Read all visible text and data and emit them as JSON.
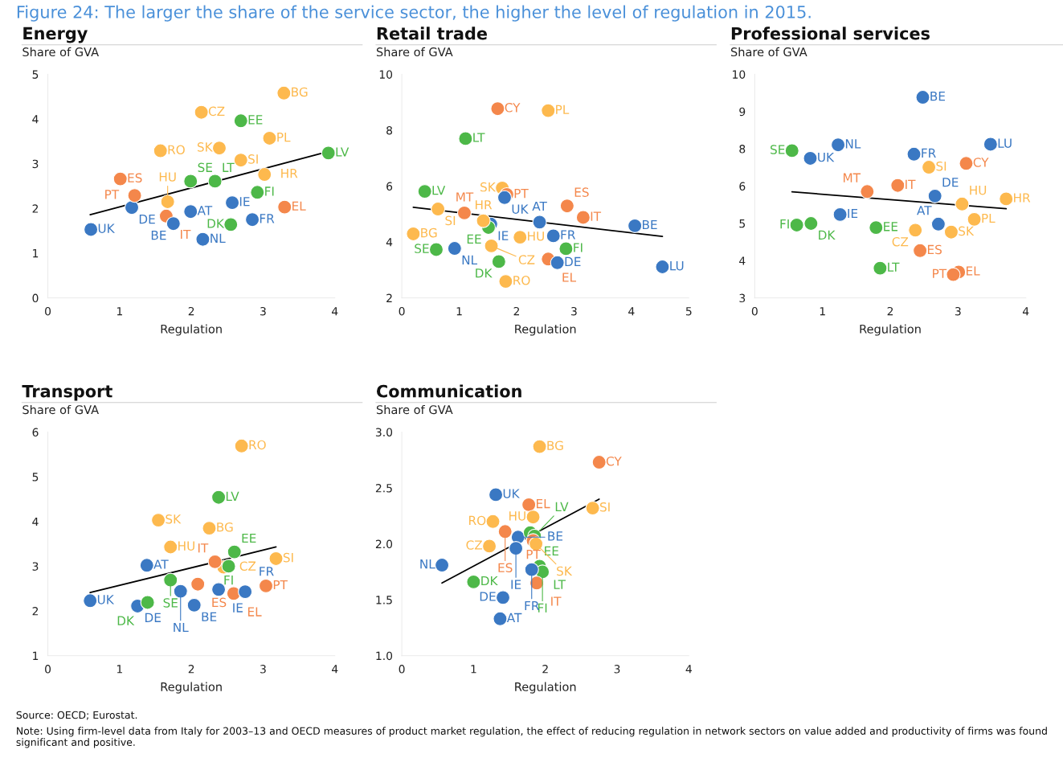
{
  "chart_data": [
    {
      "type": "scatter",
      "title": "Energy",
      "ylabel": "Share of GVA",
      "xlabel": "Regulation",
      "xlim": [
        0,
        4
      ],
      "xticks": [
        0,
        1,
        2,
        3,
        4
      ],
      "ylim": [
        0,
        5
      ],
      "yticks": [
        0,
        1,
        2,
        3,
        4,
        5
      ],
      "annotations": [
        "Figure 24: The larger the share of the service sector, the higher the level of regulation in 2015."
      ],
      "series": [
        {
          "marker": "circle",
          "x": [
            0.6,
            1.17,
            1.01,
            1.21,
            1.65,
            1.75,
            1.67,
            1.57,
            1.99,
            1.99,
            2.14,
            2.16,
            2.33,
            2.39,
            2.57,
            2.55,
            2.69,
            2.69,
            2.85,
            2.92,
            3.02,
            3.09,
            3.29,
            3.3,
            3.91
          ],
          "values": [
            1.53,
            2.02,
            2.66,
            2.29,
            1.83,
            1.66,
            2.15,
            3.29,
            2.61,
            1.93,
            4.15,
            1.31,
            2.61,
            3.35,
            2.13,
            1.64,
            3.96,
            3.08,
            1.75,
            2.36,
            2.76,
            3.57,
            4.58,
            2.03,
            3.24
          ],
          "value_labels": [
            "UK",
            "DE",
            "ES",
            "PT",
            "IT",
            "BE",
            "HU",
            "RO",
            "SE",
            "AT",
            "CZ",
            "NL",
            "LT",
            "SK",
            "IE",
            "DK",
            "EE",
            "SI",
            "FR",
            "FI",
            "HR",
            "PL",
            "BG",
            "EL",
            "LV"
          ],
          "colors": [
            "#3a78c3",
            "#3a78c3",
            "#f4874b",
            "#f4874b",
            "#f4874b",
            "#3a78c3",
            "#fdb94e",
            "#fdb94e",
            "#4db848",
            "#3a78c3",
            "#fdb94e",
            "#3a78c3",
            "#4db848",
            "#fdb94e",
            "#3a78c3",
            "#4db848",
            "#4db848",
            "#fdb94e",
            "#3a78c3",
            "#4db848",
            "#fdb94e",
            "#fdb94e",
            "#fdb94e",
            "#f4874b",
            "#4db848"
          ]
        },
        {
          "type": "line",
          "x": [
            0.59,
            3.81
          ],
          "values": [
            1.86,
            3.23
          ],
          "color": "#000000"
        }
      ]
    },
    {
      "type": "scatter",
      "title": "Retail trade",
      "ylabel": "Share of GVA",
      "xlabel": "Regulation",
      "xlim": [
        0,
        5
      ],
      "xticks": [
        0,
        1,
        2,
        3,
        4,
        5
      ],
      "ylim": [
        2,
        10
      ],
      "yticks": [
        2,
        4,
        6,
        8,
        10
      ],
      "series": [
        {
          "marker": "circle",
          "x": [
            1.67,
            2.55,
            1.11,
            0.4,
            1.75,
            1.83,
            1.79,
            0.63,
            1.09,
            1.55,
            1.51,
            1.42,
            2.4,
            2.88,
            3.16,
            4.06,
            0.2,
            2.06,
            2.64,
            0.6,
            0.92,
            1.56,
            2.86,
            1.69,
            2.55,
            2.71,
            4.54,
            1.81
          ],
          "values": [
            8.77,
            8.7,
            7.7,
            5.81,
            5.93,
            5.7,
            5.59,
            5.18,
            5.04,
            4.64,
            4.52,
            4.76,
            4.71,
            5.29,
            4.88,
            4.58,
            4.29,
            4.17,
            4.22,
            3.73,
            3.77,
            3.86,
            3.76,
            3.3,
            3.39,
            3.26,
            3.11,
            2.59
          ],
          "value_labels": [
            "CY",
            "PL",
            "LT",
            "LV",
            "SK",
            "PT",
            "UK",
            "SI",
            "MT",
            "IE",
            "EE",
            "HR",
            "AT",
            "ES",
            "IT",
            "BE",
            "BG",
            "HU",
            "FR",
            "SE",
            "NL",
            "CZ",
            "FI",
            "DK",
            "EL",
            "DE",
            "LU",
            "RO"
          ],
          "colors": [
            "#f4874b",
            "#fdb94e",
            "#4db848",
            "#4db848",
            "#fdb94e",
            "#f4874b",
            "#3a78c3",
            "#fdb94e",
            "#f4874b",
            "#3a78c3",
            "#4db848",
            "#fdb94e",
            "#3a78c3",
            "#f4874b",
            "#f4874b",
            "#3a78c3",
            "#fdb94e",
            "#fdb94e",
            "#3a78c3",
            "#4db848",
            "#3a78c3",
            "#fdb94e",
            "#4db848",
            "#4db848",
            "#f4874b",
            "#3a78c3",
            "#3a78c3",
            "#fdb94e"
          ]
        },
        {
          "type": "line",
          "x": [
            0.2,
            4.54
          ],
          "values": [
            5.24,
            4.2
          ],
          "color": "#000000"
        }
      ]
    },
    {
      "type": "scatter",
      "title": "Professional services",
      "ylabel": "Share of GVA",
      "xlabel": "Regulation",
      "xlim": [
        0,
        4
      ],
      "xticks": [
        0,
        1,
        2,
        3,
        4
      ],
      "ylim": [
        3,
        10
      ],
      "yticks": [
        3,
        {
          "value": 4.1667,
          "label": "4"
        },
        {
          "value": 5.3333,
          "label": "5"
        },
        {
          "value": 6.5,
          "label": "6"
        },
        {
          "value": 7.6667,
          "label": "8"
        },
        {
          "value": 8.8333,
          "label": "9"
        },
        10
      ],
      "series": [
        {
          "marker": "circle",
          "x": [
            2.48,
            1.23,
            0.55,
            0.82,
            2.35,
            3.48,
            3.12,
            2.57,
            1.66,
            2.11,
            2.66,
            3.06,
            3.71,
            1.26,
            0.62,
            0.83,
            1.79,
            2.37,
            2.71,
            3.24,
            2.9,
            2.44,
            1.85,
            3.01,
            2.93
          ],
          "values": [
            9.28,
            7.79,
            7.61,
            7.37,
            7.5,
            7.81,
            7.21,
            7.09,
            6.33,
            6.52,
            6.19,
            5.94,
            6.1,
            5.61,
            5.28,
            5.33,
            5.2,
            5.12,
            5.31,
            5.46,
            5.06,
            4.48,
            3.93,
            3.81,
            3.73
          ],
          "value_labels": [
            "BE",
            "NL",
            "SE",
            "UK",
            "FR",
            "LU",
            "CY",
            "SI",
            "MT",
            "IT",
            "DE",
            "HU",
            "HR",
            "IE",
            "FI",
            "DK",
            "EE",
            "CZ",
            "AT",
            "PL",
            "SK",
            "ES",
            "LT",
            "EL",
            "PT"
          ],
          "colors": [
            "#3a78c3",
            "#3a78c3",
            "#4db848",
            "#3a78c3",
            "#3a78c3",
            "#3a78c3",
            "#f4874b",
            "#fdb94e",
            "#f4874b",
            "#f4874b",
            "#3a78c3",
            "#fdb94e",
            "#fdb94e",
            "#3a78c3",
            "#4db848",
            "#4db848",
            "#4db848",
            "#fdb94e",
            "#3a78c3",
            "#fdb94e",
            "#fdb94e",
            "#f4874b",
            "#4db848",
            "#f4874b",
            "#f4874b"
          ]
        },
        {
          "type": "line",
          "x": [
            0.55,
            3.71
          ],
          "values": [
            6.32,
            5.79
          ],
          "color": "#000000"
        }
      ]
    },
    {
      "type": "scatter",
      "title": "Transport",
      "ylabel": "Share of GVA",
      "xlabel": "Regulation",
      "xlim": [
        0,
        4
      ],
      "xticks": [
        0,
        1,
        2,
        3,
        4
      ],
      "ylim": [
        1,
        6
      ],
      "yticks": [
        1,
        2,
        3,
        4,
        5,
        6
      ],
      "series": [
        {
          "marker": "circle",
          "x": [
            2.7,
            2.38,
            1.54,
            2.25,
            1.71,
            2.45,
            2.6,
            2.33,
            2.52,
            3.18,
            1.38,
            1.71,
            2.09,
            3.04,
            0.59,
            1.25,
            1.39,
            1.85,
            2.04,
            2.38,
            2.59,
            2.75
          ],
          "values": [
            5.69,
            4.54,
            4.03,
            3.85,
            3.43,
            2.98,
            3.32,
            3.1,
            3.0,
            3.17,
            3.02,
            2.69,
            2.6,
            2.56,
            2.23,
            2.11,
            2.19,
            2.44,
            2.13,
            2.48,
            2.39,
            2.43
          ],
          "value_labels": [
            "RO",
            "LV",
            "SK",
            "BG",
            "HU",
            "CZ",
            "EE",
            "IT",
            "FI",
            "SI",
            "AT",
            "SE",
            "ES",
            "PT",
            "UK",
            "DE",
            "DK",
            "NL",
            "BE",
            "IE",
            "EL",
            "FR"
          ],
          "colors": [
            "#fdb94e",
            "#4db848",
            "#fdb94e",
            "#fdb94e",
            "#fdb94e",
            "#fdb94e",
            "#4db848",
            "#f4874b",
            "#4db848",
            "#fdb94e",
            "#3a78c3",
            "#4db848",
            "#f4874b",
            "#f4874b",
            "#3a78c3",
            "#3a78c3",
            "#4db848",
            "#3a78c3",
            "#3a78c3",
            "#3a78c3",
            "#f4874b",
            "#3a78c3"
          ]
        },
        {
          "type": "line",
          "x": [
            0.59,
            3.18
          ],
          "values": [
            2.41,
            3.43
          ],
          "color": "#000000"
        }
      ],
      "annotations": [
        "Source: OECD; Eurostat.",
        "Note: Using firm-level data from Italy for 2003–13 and OECD measures of product market regulation, the effect of reducing regulation in network sectors on value added and productivity of firms was found significant and positive."
      ]
    },
    {
      "type": "scatter",
      "title": "Communication",
      "ylabel": "Share of GVA",
      "xlabel": "Regulation",
      "xlim": [
        0,
        4
      ],
      "xticks": [
        0,
        1,
        2,
        3,
        4
      ],
      "ylim": [
        1.0,
        3.0
      ],
      "yticks": [
        {
          "value": 1.0,
          "label": "1.0"
        },
        1.5,
        {
          "value": 2.0,
          "label": "2.0"
        },
        2.5,
        {
          "value": 3.0,
          "label": "3.0"
        }
      ],
      "series": [
        {
          "marker": "circle",
          "x": [
            1.92,
            2.75,
            1.31,
            1.77,
            1.83,
            2.66,
            1.27,
            1.44,
            1.62,
            1.79,
            1.85,
            1.83,
            1.87,
            1.22,
            1.59,
            0.56,
            1.92,
            1.96,
            1.81,
            1.88,
            1.0,
            1.41,
            1.37
          ],
          "values": [
            2.87,
            2.73,
            2.44,
            2.35,
            2.24,
            2.32,
            2.2,
            2.11,
            2.06,
            2.1,
            2.07,
            2.03,
            2.0,
            1.98,
            1.96,
            1.81,
            1.8,
            1.75,
            1.77,
            1.65,
            1.66,
            1.52,
            1.33
          ],
          "value_labels": [
            "BG",
            "CY",
            "UK",
            "EL",
            "HU",
            "SI",
            "RO",
            "ES",
            "BE",
            "EE",
            "LV",
            "PT",
            "SK",
            "CZ",
            "IE",
            "NL",
            "LT",
            "FI",
            "FR",
            "IT",
            "DK",
            "DE",
            "AT"
          ],
          "colors": [
            "#fdb94e",
            "#f4874b",
            "#3a78c3",
            "#f4874b",
            "#fdb94e",
            "#fdb94e",
            "#fdb94e",
            "#f4874b",
            "#3a78c3",
            "#4db848",
            "#4db848",
            "#f4874b",
            "#fdb94e",
            "#fdb94e",
            "#3a78c3",
            "#3a78c3",
            "#4db848",
            "#4db848",
            "#3a78c3",
            "#f4874b",
            "#4db848",
            "#3a78c3",
            "#3a78c3"
          ]
        },
        {
          "type": "line",
          "x": [
            0.56,
            2.75
          ],
          "values": [
            1.65,
            2.4
          ],
          "color": "#000000"
        }
      ]
    }
  ]
}
